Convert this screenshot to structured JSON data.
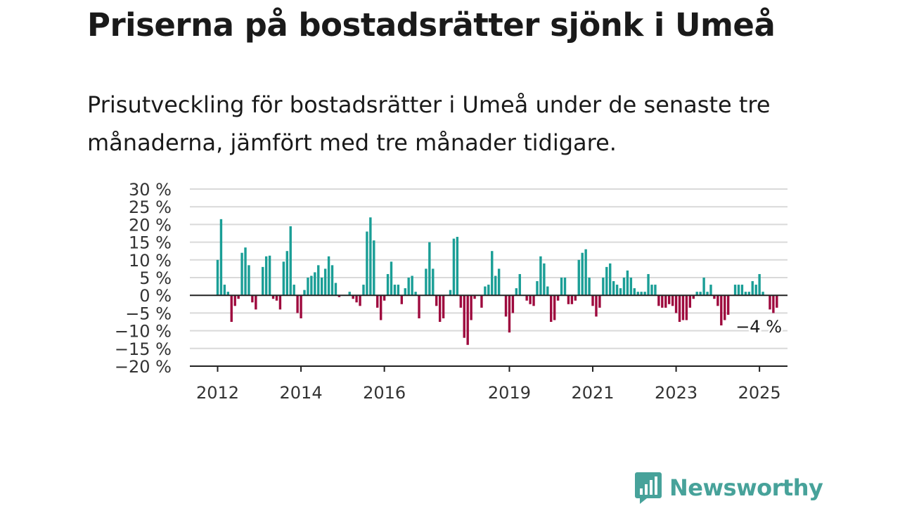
{
  "title": "Priserna på bostadsrätter sjönk i Umeå",
  "subtitle": "Prisutveckling för bostadsrätter i Umeå under de senaste tre månaderna, jämfört med tre månader tidigare.",
  "brand": {
    "name": "Newsworthy",
    "logo_icon": "bar-chart-speech-bubble-icon"
  },
  "colors": {
    "positive": "#1a9e96",
    "negative": "#9e0a3e",
    "grid": "#d9d9d9",
    "axis": "#222222",
    "brand": "#47a29a"
  },
  "chart_data": {
    "type": "bar",
    "ylim": [
      -20,
      30
    ],
    "yticks": [
      30,
      25,
      20,
      15,
      10,
      5,
      0,
      -5,
      -10,
      -15,
      -20
    ],
    "ytick_labels": [
      "30 %",
      "25 %",
      "20 %",
      "15 %",
      "10 %",
      "5 %",
      "0 %",
      "−5 %",
      "−10 %",
      "−15 %",
      "−20 %"
    ],
    "grid": true,
    "start_month": "2012-01",
    "xtick_labels": [
      {
        "label": "2012",
        "month": "2012-01"
      },
      {
        "label": "2014",
        "month": "2014-01"
      },
      {
        "label": "2016",
        "month": "2016-01"
      },
      {
        "label": "2019",
        "month": "2019-01"
      },
      {
        "label": "2021",
        "month": "2021-01"
      },
      {
        "label": "2023",
        "month": "2023-01"
      },
      {
        "label": "2025",
        "month": "2025-01"
      }
    ],
    "values": [
      10,
      21.5,
      3,
      1,
      -7.5,
      -3,
      -1,
      12,
      13.5,
      8.5,
      -2,
      -4,
      0,
      8,
      11,
      11.2,
      -1,
      -1.5,
      -4,
      9.5,
      12.5,
      19.5,
      3,
      -5,
      -6.5,
      1.5,
      5,
      5.5,
      6.5,
      8.5,
      5,
      7.5,
      11,
      8.5,
      3.5,
      -0.5,
      0,
      0,
      1,
      -1,
      -2,
      -3,
      3,
      18,
      22,
      15.5,
      -3.5,
      -7,
      -1.5,
      6,
      9.5,
      3,
      3,
      -2.5,
      2,
      5,
      5.5,
      1,
      -6.5,
      0,
      7.5,
      15,
      7.5,
      -3,
      -7.5,
      -6.5,
      0,
      1.5,
      16,
      16.5,
      -3.5,
      -12,
      -14,
      -7,
      -1,
      0,
      -3.5,
      2.5,
      3,
      12.5,
      5.5,
      7.5,
      0,
      -6,
      -10.5,
      -5,
      2,
      6,
      0,
      -1.5,
      -2.5,
      -3,
      4,
      11,
      9,
      2.5,
      -7.5,
      -7,
      -1.5,
      5,
      5,
      -2.5,
      -2.5,
      -1.5,
      10,
      12,
      13,
      5,
      -3,
      -6,
      -3.5,
      5,
      8,
      9,
      4,
      3,
      2,
      5,
      7,
      5,
      2,
      1,
      1,
      1,
      6,
      3,
      3,
      -3,
      -3.5,
      -3.5,
      -2.5,
      -3,
      -5,
      -7.5,
      -7,
      -7,
      -3.5,
      -1,
      1,
      1,
      5,
      1,
      3,
      -1,
      -3,
      -8.5,
      -7,
      -5.5,
      0,
      3,
      3,
      3,
      1,
      1,
      4,
      3,
      6,
      1,
      0,
      -4,
      -5,
      -3.5
    ],
    "annotation": {
      "text": "−4 %",
      "value": -4
    }
  }
}
